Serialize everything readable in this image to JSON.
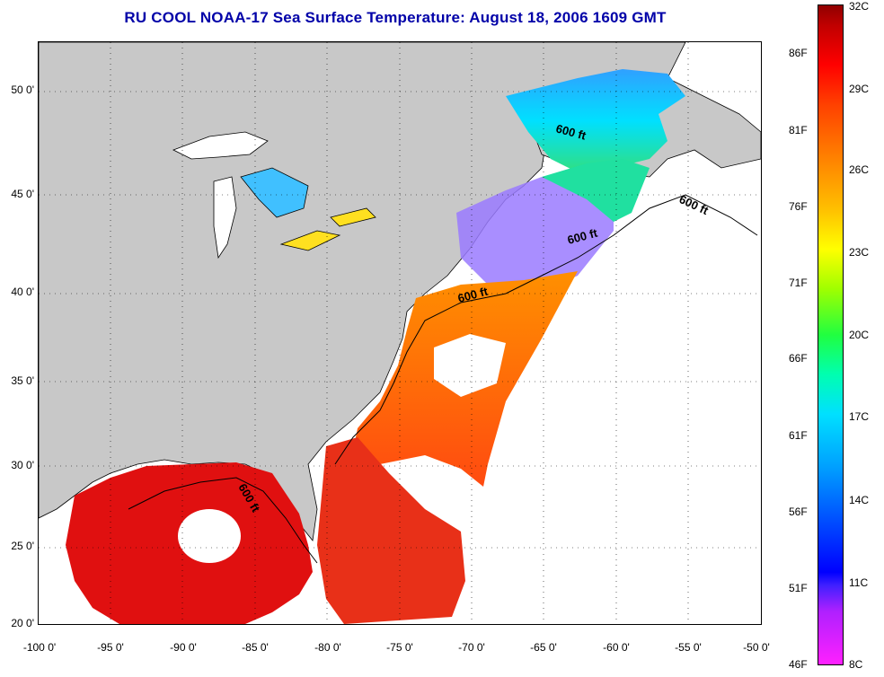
{
  "title": "RU COOL  NOAA-17  Sea Surface Temperature:  August 18, 2006 1609 GMT",
  "map": {
    "lat_labels": [
      "50 0'",
      "45 0'",
      "40 0'",
      "35 0'",
      "30 0'",
      "25 0'",
      "20 0'"
    ],
    "lon_labels": [
      "-100 0'",
      "-95 0'",
      "-90 0'",
      "-85 0'",
      "-80 0'",
      "-75 0'",
      "-70 0'",
      "-65 0'",
      "-60 0'",
      "-55 0'",
      "-50 0'"
    ],
    "lat_range": [
      20,
      52.5
    ],
    "lon_range": [
      -100,
      -50
    ],
    "contour_label": "600 ft",
    "colors": {
      "land": "#c8c8c8",
      "no_data": "#ffffff",
      "gulf_sst": "#e01010"
    }
  },
  "colorbar": {
    "fahrenheit_labels": [
      "86F",
      "81F",
      "76F",
      "71F",
      "66F",
      "61F",
      "56F",
      "51F",
      "46F"
    ],
    "celsius_labels": [
      "32C",
      "29C",
      "26C",
      "23C",
      "20C",
      "17C",
      "14C",
      "11C",
      "8C"
    ]
  }
}
